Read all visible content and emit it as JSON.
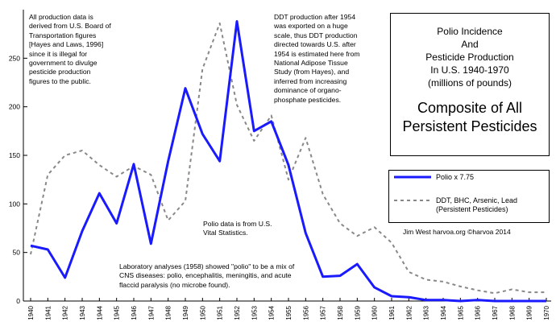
{
  "chart_data": {
    "type": "line",
    "x": [
      1940,
      1941,
      1942,
      1943,
      1944,
      1945,
      1946,
      1947,
      1948,
      1949,
      1950,
      1951,
      1952,
      1953,
      1954,
      1955,
      1956,
      1957,
      1958,
      1959,
      1960,
      1961,
      1962,
      1963,
      1964,
      1965,
      1966,
      1967,
      1968,
      1969,
      1970
    ],
    "x_tick_labels": [
      "1940",
      "1941",
      "1942",
      "1943",
      "1944",
      "1945",
      "1946",
      "1947",
      "1948",
      "1949",
      "1950",
      "1951",
      "1952",
      "1953",
      "1954",
      "1955",
      "1956",
      "1957",
      "1958",
      "1959",
      "1960",
      "1961",
      "1962",
      "1963",
      "1964",
      "1965",
      "1966",
      "1967",
      "1968",
      "1969",
      "1970"
    ],
    "ylim": [
      0,
      300
    ],
    "y_ticks": [
      0,
      50,
      100,
      150,
      200,
      250
    ],
    "y_tick_labels": [
      "0",
      "50",
      "100",
      "150",
      "200",
      "250"
    ],
    "grid": false,
    "legend_position": "right",
    "series": [
      {
        "name": "Polio x 7.75",
        "color": "#1a1aff",
        "style": "solid",
        "values": [
          57,
          53,
          24,
          72,
          111,
          80,
          141,
          59,
          144,
          219,
          172,
          144,
          288,
          175,
          185,
          140,
          70,
          25,
          26,
          38,
          14,
          5,
          4,
          1,
          1,
          0,
          1,
          0,
          0,
          0,
          0
        ]
      },
      {
        "name": "DDT, BHC, Arsenic, Lead\n(Persistent Pesticides)",
        "color": "#888888",
        "style": "dashed",
        "values": [
          48,
          130,
          150,
          155,
          140,
          128,
          139,
          130,
          83,
          103,
          239,
          286,
          202,
          165,
          191,
          125,
          168,
          110,
          80,
          67,
          76,
          60,
          30,
          22,
          20,
          15,
          11,
          8,
          12,
          9,
          9
        ]
      }
    ],
    "title": "Polio Incidence\nAnd\nPesticide Production\nIn U.S. 1940-1970\n(millions of pounds)",
    "subtitle": "Composite of All\nPersistent Pesticides",
    "annotations": {
      "board_of_transportation": "All production data is\nderived from U.S. Board of\nTransportation figures\n[Hayes and Laws, 1996]\nsince it is illegal for\ngovernment to divulge\npesticide production\nfigures to the public.",
      "ddt_export": "DDT production after 1954\nwas exported on a huge\nscale, thus DDT production\ndirected towards U.S. after\n1954 is estimated here from\nNational Adipose Tissue\nStudy (from Hayes), and\ninferred from increasing\ndominance of organo-\nphosphate pesticides.",
      "vital_statistics": "Polio data is from U.S.\nVital Statistics.",
      "lab_analyses": "Laboratory analyses (1958) showed \"polio\" to be a mix of\nCNS diseases: polio, encephalitis, meningitis, and acute\nflaccid paralysis (no microbe found).",
      "credit": "Jim West   harvoa.org   ©harvoa 2014"
    }
  }
}
